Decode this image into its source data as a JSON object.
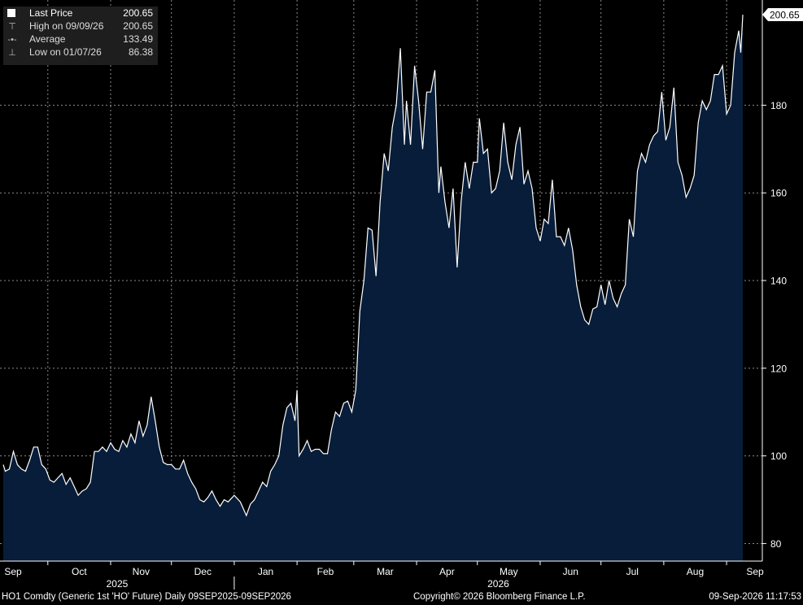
{
  "legend": {
    "last_price_label": "Last Price",
    "last_price_value": "200.65",
    "high_label": "High on 09/09/26",
    "high_value": "200.65",
    "average_label": "Average",
    "average_value": "133.49",
    "low_label": "Low on 01/07/26",
    "low_value": "86.38"
  },
  "footer": {
    "left": "HO1 Comdty (Generic 1st 'HO' Future) Daily 09SEP2025-09SEP2026",
    "center": "Copyright© 2026 Bloomberg Finance L.P.",
    "right": "09-Sep-2026 11:17:53"
  },
  "colors": {
    "background": "#000000",
    "area_fill": "#071d3a",
    "line": "#ffffff",
    "grid": "#8a8a8a"
  },
  "chart_data": {
    "type": "area",
    "x_unit": "date",
    "x_range": [
      "2025-09-09",
      "2026-09-09"
    ],
    "ylim": [
      76,
      204
    ],
    "y_ticks": [
      80,
      100,
      120,
      140,
      160,
      180
    ],
    "y_axis_side": "right",
    "grid": true,
    "last_value_label": "200.65",
    "x_tick_labels": [
      "Sep",
      "Oct",
      "Nov",
      "Dec",
      "Jan",
      "Feb",
      "Mar",
      "Apr",
      "May",
      "Jun",
      "Jul",
      "Aug",
      "Sep"
    ],
    "year_labels": [
      "2025",
      "2026"
    ],
    "series": [
      {
        "values": [
          [
            "2025-09-09",
            98
          ],
          [
            "2025-09-10",
            96.5
          ],
          [
            "2025-09-12",
            97
          ],
          [
            "2025-09-14",
            101
          ],
          [
            "2025-09-16",
            98
          ],
          [
            "2025-09-18",
            97
          ],
          [
            "2025-09-20",
            96.5
          ],
          [
            "2025-09-22",
            99
          ],
          [
            "2025-09-24",
            102
          ],
          [
            "2025-09-26",
            102
          ],
          [
            "2025-09-28",
            98
          ],
          [
            "2025-09-30",
            97
          ],
          [
            "2025-10-02",
            94.5
          ],
          [
            "2025-10-04",
            94
          ],
          [
            "2025-10-06",
            95
          ],
          [
            "2025-10-08",
            96
          ],
          [
            "2025-10-10",
            93.5
          ],
          [
            "2025-10-12",
            95
          ],
          [
            "2025-10-14",
            93
          ],
          [
            "2025-10-16",
            91
          ],
          [
            "2025-10-18",
            92
          ],
          [
            "2025-10-20",
            92.5
          ],
          [
            "2025-10-22",
            94
          ],
          [
            "2025-10-24",
            101
          ],
          [
            "2025-10-26",
            101
          ],
          [
            "2025-10-28",
            102
          ],
          [
            "2025-10-30",
            101
          ],
          [
            "2025-11-01",
            103
          ],
          [
            "2025-11-03",
            101.5
          ],
          [
            "2025-11-05",
            101
          ],
          [
            "2025-11-07",
            103.5
          ],
          [
            "2025-11-09",
            102
          ],
          [
            "2025-11-11",
            105
          ],
          [
            "2025-11-13",
            103
          ],
          [
            "2025-11-15",
            108
          ],
          [
            "2025-11-17",
            104.5
          ],
          [
            "2025-11-19",
            107
          ],
          [
            "2025-11-21",
            113.5
          ],
          [
            "2025-11-23",
            108
          ],
          [
            "2025-11-25",
            102
          ],
          [
            "2025-11-27",
            98.5
          ],
          [
            "2025-11-29",
            98
          ],
          [
            "2025-12-01",
            98
          ],
          [
            "2025-12-03",
            97
          ],
          [
            "2025-12-05",
            97
          ],
          [
            "2025-12-07",
            99
          ],
          [
            "2025-12-09",
            96
          ],
          [
            "2025-12-11",
            94
          ],
          [
            "2025-12-13",
            92.5
          ],
          [
            "2025-12-15",
            90
          ],
          [
            "2025-12-17",
            89.5
          ],
          [
            "2025-12-19",
            90.5
          ],
          [
            "2025-12-21",
            92
          ],
          [
            "2025-12-23",
            90
          ],
          [
            "2025-12-25",
            88.5
          ],
          [
            "2025-12-27",
            90
          ],
          [
            "2025-12-29",
            89.5
          ],
          [
            "2026-01-01",
            91
          ],
          [
            "2026-01-04",
            89.5
          ],
          [
            "2026-01-07",
            86.38
          ],
          [
            "2026-01-09",
            89
          ],
          [
            "2026-01-11",
            90
          ],
          [
            "2026-01-13",
            92
          ],
          [
            "2026-01-15",
            94
          ],
          [
            "2026-01-17",
            93
          ],
          [
            "2026-01-19",
            96.5
          ],
          [
            "2026-01-21",
            98
          ],
          [
            "2026-01-23",
            100
          ],
          [
            "2026-01-25",
            107
          ],
          [
            "2026-01-27",
            111
          ],
          [
            "2026-01-29",
            112
          ],
          [
            "2026-01-31",
            108
          ],
          [
            "2026-02-01",
            115
          ],
          [
            "2026-02-02",
            100
          ],
          [
            "2026-02-04",
            101.5
          ],
          [
            "2026-02-06",
            103.5
          ],
          [
            "2026-02-08",
            101
          ],
          [
            "2026-02-10",
            101.5
          ],
          [
            "2026-02-12",
            101.5
          ],
          [
            "2026-02-14",
            100.5
          ],
          [
            "2026-02-16",
            100.5
          ],
          [
            "2026-02-18",
            106
          ],
          [
            "2026-02-20",
            110
          ],
          [
            "2026-02-22",
            109
          ],
          [
            "2026-02-24",
            112
          ],
          [
            "2026-02-26",
            112.5
          ],
          [
            "2026-02-28",
            110
          ],
          [
            "2026-03-02",
            115
          ],
          [
            "2026-03-04",
            133
          ],
          [
            "2026-03-06",
            140
          ],
          [
            "2026-03-08",
            152
          ],
          [
            "2026-03-10",
            151.5
          ],
          [
            "2026-03-12",
            141
          ],
          [
            "2026-03-14",
            158
          ],
          [
            "2026-03-16",
            169
          ],
          [
            "2026-03-18",
            165
          ],
          [
            "2026-03-20",
            175
          ],
          [
            "2026-03-22",
            180
          ],
          [
            "2026-03-24",
            193
          ],
          [
            "2026-03-26",
            171
          ],
          [
            "2026-03-27",
            181
          ],
          [
            "2026-03-29",
            171
          ],
          [
            "2026-03-31",
            189
          ],
          [
            "2026-04-02",
            181
          ],
          [
            "2026-04-04",
            170
          ],
          [
            "2026-04-06",
            183
          ],
          [
            "2026-04-08",
            183
          ],
          [
            "2026-04-10",
            188
          ],
          [
            "2026-04-12",
            160
          ],
          [
            "2026-04-13",
            166
          ],
          [
            "2026-04-15",
            158
          ],
          [
            "2026-04-17",
            152
          ],
          [
            "2026-04-19",
            161
          ],
          [
            "2026-04-21",
            143
          ],
          [
            "2026-04-23",
            158
          ],
          [
            "2026-04-25",
            167
          ],
          [
            "2026-04-27",
            161
          ],
          [
            "2026-04-29",
            167
          ],
          [
            "2026-05-01",
            167
          ],
          [
            "2026-05-02",
            177
          ],
          [
            "2026-05-04",
            169
          ],
          [
            "2026-05-06",
            170
          ],
          [
            "2026-05-08",
            160
          ],
          [
            "2026-05-10",
            161
          ],
          [
            "2026-05-12",
            165
          ],
          [
            "2026-05-14",
            176
          ],
          [
            "2026-05-16",
            167
          ],
          [
            "2026-05-18",
            163
          ],
          [
            "2026-05-20",
            171
          ],
          [
            "2026-05-22",
            175
          ],
          [
            "2026-05-24",
            162
          ],
          [
            "2026-05-26",
            165
          ],
          [
            "2026-05-28",
            161
          ],
          [
            "2026-05-30",
            152
          ],
          [
            "2026-06-01",
            149
          ],
          [
            "2026-06-03",
            154
          ],
          [
            "2026-06-05",
            153
          ],
          [
            "2026-06-07",
            163
          ],
          [
            "2026-06-09",
            150
          ],
          [
            "2026-06-11",
            150
          ],
          [
            "2026-06-13",
            148
          ],
          [
            "2026-06-15",
            152
          ],
          [
            "2026-06-17",
            147
          ],
          [
            "2026-06-19",
            139
          ],
          [
            "2026-06-21",
            134
          ],
          [
            "2026-06-23",
            131
          ],
          [
            "2026-06-25",
            130
          ],
          [
            "2026-06-27",
            133.5
          ],
          [
            "2026-06-29",
            134
          ],
          [
            "2026-07-01",
            139
          ],
          [
            "2026-07-03",
            134.5
          ],
          [
            "2026-07-05",
            140
          ],
          [
            "2026-07-07",
            136
          ],
          [
            "2026-07-09",
            134
          ],
          [
            "2026-07-11",
            137
          ],
          [
            "2026-07-13",
            139
          ],
          [
            "2026-07-15",
            154
          ],
          [
            "2026-07-17",
            150
          ],
          [
            "2026-07-19",
            165
          ],
          [
            "2026-07-21",
            169
          ],
          [
            "2026-07-23",
            167
          ],
          [
            "2026-07-25",
            171
          ],
          [
            "2026-07-27",
            173
          ],
          [
            "2026-07-29",
            174
          ],
          [
            "2026-07-31",
            183
          ],
          [
            "2026-08-02",
            172
          ],
          [
            "2026-08-04",
            175
          ],
          [
            "2026-08-06",
            184
          ],
          [
            "2026-08-08",
            167
          ],
          [
            "2026-08-10",
            164
          ],
          [
            "2026-08-12",
            159
          ],
          [
            "2026-08-14",
            161
          ],
          [
            "2026-08-16",
            164
          ],
          [
            "2026-08-18",
            176
          ],
          [
            "2026-08-20",
            181
          ],
          [
            "2026-08-22",
            179
          ],
          [
            "2026-08-24",
            181
          ],
          [
            "2026-08-26",
            187
          ],
          [
            "2026-08-28",
            187
          ],
          [
            "2026-08-30",
            189
          ],
          [
            "2026-09-01",
            178
          ],
          [
            "2026-09-03",
            180
          ],
          [
            "2026-09-05",
            192
          ],
          [
            "2026-09-07",
            197
          ],
          [
            "2026-09-08",
            192
          ],
          [
            "2026-09-09",
            200.65
          ]
        ]
      }
    ]
  }
}
